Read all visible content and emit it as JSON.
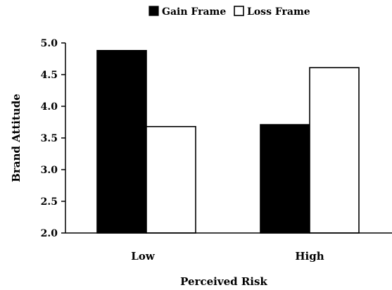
{
  "chart_data": {
    "type": "bar",
    "title": "",
    "xlabel": "Perceived Risk",
    "ylabel": "Brand Attitude",
    "categories": [
      "Low",
      "High"
    ],
    "ylim": [
      2.0,
      5.0
    ],
    "yticks": [
      "2.0",
      "2.5",
      "3.0",
      "3.5",
      "4.0",
      "4.5",
      "5.0"
    ],
    "grid": false,
    "legend_position": "top",
    "series": [
      {
        "name": "Gain Frame",
        "values": [
          4.88,
          3.71
        ],
        "color": "#000000"
      },
      {
        "name": "Loss Frame",
        "values": [
          3.68,
          4.61
        ],
        "color": "#ffffff"
      }
    ]
  }
}
